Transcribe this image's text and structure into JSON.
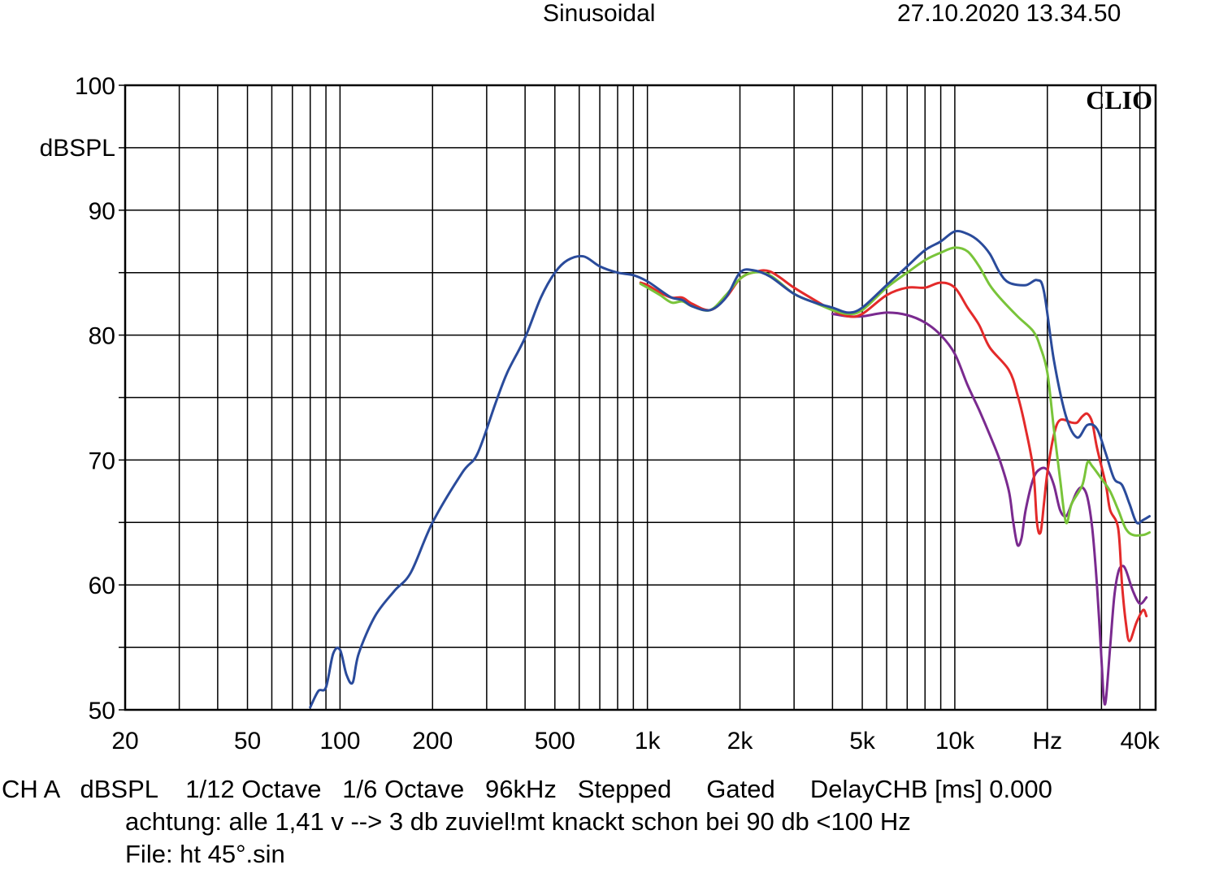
{
  "header": {
    "mode": "Sinusoidal",
    "datetime": "27.10.2020 13.34.50"
  },
  "footer": {
    "line1": "CH A   dBSPL    1/12 Octave   1/6 Octave   96kHz   Stepped     Gated     DelayCHB [ms] 0.000",
    "line2": "achtung: alle 1,41 v --> 3 db zuviel!mt knackt schon bei 90 db <100 Hz",
    "line3": "File: ht 45°.sin"
  },
  "colors": {
    "blue": "#2a4b9b",
    "green": "#79c43a",
    "red": "#e32a2a",
    "purple": "#7a2a8f",
    "grid": "#000000"
  },
  "chart_data": {
    "type": "line",
    "logo": "CLIO",
    "ylabel": "dBSPL",
    "xlabel": "Hz",
    "xscale": "log",
    "xlim": [
      20,
      45000
    ],
    "ylim": [
      50,
      100
    ],
    "grid": true,
    "y_ticks": [
      {
        "value": 100,
        "label": "100"
      },
      {
        "value": 90,
        "label": "90"
      },
      {
        "value": 80,
        "label": "80"
      },
      {
        "value": 70,
        "label": "70"
      },
      {
        "value": 60,
        "label": "60"
      },
      {
        "value": 50,
        "label": "50"
      }
    ],
    "x_ticks": [
      {
        "value": 20,
        "label": "20"
      },
      {
        "value": 50,
        "label": "50"
      },
      {
        "value": 100,
        "label": "100"
      },
      {
        "value": 200,
        "label": "200"
      },
      {
        "value": 500,
        "label": "500"
      },
      {
        "value": 1000,
        "label": "1k"
      },
      {
        "value": 2000,
        "label": "2k"
      },
      {
        "value": 5000,
        "label": "5k"
      },
      {
        "value": 10000,
        "label": "10k"
      },
      {
        "value": 20000,
        "label": "Hz"
      },
      {
        "value": 40000,
        "label": "40k"
      }
    ],
    "series": [
      {
        "color": "#2a4b9b",
        "points": [
          [
            80,
            50.2
          ],
          [
            85,
            51.5
          ],
          [
            90,
            51.8
          ],
          [
            95,
            54.5
          ],
          [
            100,
            54.8
          ],
          [
            105,
            52.8
          ],
          [
            110,
            52.2
          ],
          [
            115,
            54.5
          ],
          [
            130,
            57.5
          ],
          [
            150,
            59.5
          ],
          [
            170,
            61.0
          ],
          [
            200,
            65.0
          ],
          [
            250,
            69.0
          ],
          [
            280,
            70.5
          ],
          [
            320,
            74.5
          ],
          [
            350,
            77.0
          ],
          [
            400,
            79.8
          ],
          [
            450,
            83.0
          ],
          [
            500,
            85.0
          ],
          [
            550,
            86.0
          ],
          [
            620,
            86.3
          ],
          [
            700,
            85.5
          ],
          [
            800,
            85.0
          ],
          [
            900,
            84.8
          ],
          [
            1000,
            84.3
          ],
          [
            1100,
            83.6
          ],
          [
            1200,
            83.0
          ],
          [
            1300,
            82.8
          ],
          [
            1400,
            82.3
          ],
          [
            1600,
            82.0
          ],
          [
            1800,
            83.0
          ],
          [
            2000,
            85.0
          ],
          [
            2200,
            85.2
          ],
          [
            2500,
            84.7
          ],
          [
            3000,
            83.3
          ],
          [
            3500,
            82.6
          ],
          [
            4000,
            82.2
          ],
          [
            4500,
            81.8
          ],
          [
            5000,
            82.2
          ],
          [
            6000,
            84.0
          ],
          [
            7000,
            85.5
          ],
          [
            8000,
            86.8
          ],
          [
            9000,
            87.5
          ],
          [
            10000,
            88.3
          ],
          [
            11000,
            88.1
          ],
          [
            12000,
            87.5
          ],
          [
            13000,
            86.5
          ],
          [
            14000,
            85.0
          ],
          [
            15000,
            84.2
          ],
          [
            17000,
            84.0
          ],
          [
            18500,
            84.4
          ],
          [
            19500,
            83.5
          ],
          [
            21000,
            78.0
          ],
          [
            23000,
            73.5
          ],
          [
            25000,
            71.8
          ],
          [
            27000,
            72.8
          ],
          [
            29000,
            72.5
          ],
          [
            31000,
            70.5
          ],
          [
            33000,
            68.5
          ],
          [
            35000,
            68.0
          ],
          [
            37000,
            66.5
          ],
          [
            39000,
            65.0
          ],
          [
            41000,
            65.2
          ],
          [
            43000,
            65.5
          ]
        ]
      },
      {
        "color": "#79c43a",
        "points": [
          [
            950,
            84.1
          ],
          [
            1000,
            83.8
          ],
          [
            1100,
            83.2
          ],
          [
            1200,
            82.6
          ],
          [
            1300,
            82.7
          ],
          [
            1400,
            82.3
          ],
          [
            1600,
            82.0
          ],
          [
            1800,
            83.2
          ],
          [
            2000,
            84.5
          ],
          [
            2200,
            85.0
          ],
          [
            2500,
            84.8
          ],
          [
            3000,
            83.3
          ],
          [
            3500,
            82.6
          ],
          [
            4000,
            82.0
          ],
          [
            4500,
            81.7
          ],
          [
            5000,
            82.0
          ],
          [
            6000,
            83.8
          ],
          [
            7000,
            85.0
          ],
          [
            8000,
            86.0
          ],
          [
            9000,
            86.6
          ],
          [
            10000,
            87.0
          ],
          [
            11000,
            86.7
          ],
          [
            12000,
            85.5
          ],
          [
            13000,
            84.0
          ],
          [
            14000,
            83.0
          ],
          [
            16000,
            81.5
          ],
          [
            18000,
            80.3
          ],
          [
            19000,
            79.0
          ],
          [
            20000,
            77.0
          ],
          [
            21000,
            72.5
          ],
          [
            22000,
            68.5
          ],
          [
            23000,
            65.0
          ],
          [
            24000,
            66.5
          ],
          [
            26000,
            68.0
          ],
          [
            27000,
            69.8
          ],
          [
            28000,
            69.5
          ],
          [
            30000,
            68.5
          ],
          [
            32000,
            67.5
          ],
          [
            34000,
            66.0
          ],
          [
            36000,
            64.5
          ],
          [
            38000,
            64.0
          ],
          [
            41000,
            64.0
          ],
          [
            43000,
            64.2
          ]
        ]
      },
      {
        "color": "#e32a2a",
        "points": [
          [
            950,
            84.2
          ],
          [
            1000,
            84.0
          ],
          [
            1100,
            83.4
          ],
          [
            1200,
            83.0
          ],
          [
            1300,
            83.0
          ],
          [
            1400,
            82.5
          ],
          [
            1600,
            82.0
          ],
          [
            1800,
            83.0
          ],
          [
            2000,
            84.5
          ],
          [
            2200,
            85.0
          ],
          [
            2500,
            85.1
          ],
          [
            3000,
            83.8
          ],
          [
            3500,
            82.8
          ],
          [
            4000,
            82.0
          ],
          [
            4500,
            81.5
          ],
          [
            5000,
            81.7
          ],
          [
            6000,
            83.2
          ],
          [
            7000,
            83.8
          ],
          [
            8000,
            83.8
          ],
          [
            9000,
            84.2
          ],
          [
            10000,
            83.8
          ],
          [
            11000,
            82.2
          ],
          [
            12000,
            80.8
          ],
          [
            13000,
            79.0
          ],
          [
            15000,
            77.2
          ],
          [
            16000,
            75.2
          ],
          [
            17000,
            72.5
          ],
          [
            18000,
            69.2
          ],
          [
            18500,
            65.0
          ],
          [
            19000,
            64.2
          ],
          [
            19500,
            66.5
          ],
          [
            20000,
            69.0
          ],
          [
            21000,
            72.0
          ],
          [
            22000,
            73.2
          ],
          [
            24000,
            73.0
          ],
          [
            25000,
            73.0
          ],
          [
            26000,
            73.5
          ],
          [
            27000,
            73.7
          ],
          [
            28000,
            73.0
          ],
          [
            29000,
            71.0
          ],
          [
            31000,
            68.0
          ],
          [
            32000,
            66.0
          ],
          [
            34000,
            64.5
          ],
          [
            35000,
            60.0
          ],
          [
            36000,
            57.0
          ],
          [
            37000,
            55.5
          ],
          [
            39000,
            57.0
          ],
          [
            41000,
            58.0
          ],
          [
            42000,
            57.5
          ]
        ]
      },
      {
        "color": "#7a2a8f",
        "points": [
          [
            4000,
            81.7
          ],
          [
            4500,
            81.5
          ],
          [
            5000,
            81.5
          ],
          [
            6000,
            81.8
          ],
          [
            7000,
            81.6
          ],
          [
            8000,
            81.0
          ],
          [
            9000,
            80.0
          ],
          [
            10000,
            78.5
          ],
          [
            11000,
            76.0
          ],
          [
            12000,
            74.0
          ],
          [
            13000,
            72.0
          ],
          [
            14000,
            70.0
          ],
          [
            15000,
            67.5
          ],
          [
            15500,
            65.0
          ],
          [
            16000,
            63.2
          ],
          [
            16500,
            63.8
          ],
          [
            17000,
            66.0
          ],
          [
            18000,
            68.5
          ],
          [
            19000,
            69.3
          ],
          [
            20000,
            69.2
          ],
          [
            21000,
            68.0
          ],
          [
            22000,
            66.0
          ],
          [
            23000,
            65.5
          ],
          [
            24000,
            66.5
          ],
          [
            25000,
            67.5
          ],
          [
            26000,
            67.8
          ],
          [
            27000,
            67.0
          ],
          [
            28000,
            64.5
          ],
          [
            29000,
            60.0
          ],
          [
            30000,
            54.0
          ],
          [
            30500,
            51.0
          ],
          [
            31000,
            50.8
          ],
          [
            32000,
            55.0
          ],
          [
            33000,
            59.0
          ],
          [
            34000,
            61.0
          ],
          [
            35000,
            61.5
          ],
          [
            36000,
            61.2
          ],
          [
            38000,
            59.5
          ],
          [
            40000,
            58.5
          ],
          [
            42000,
            59.0
          ]
        ]
      }
    ]
  }
}
